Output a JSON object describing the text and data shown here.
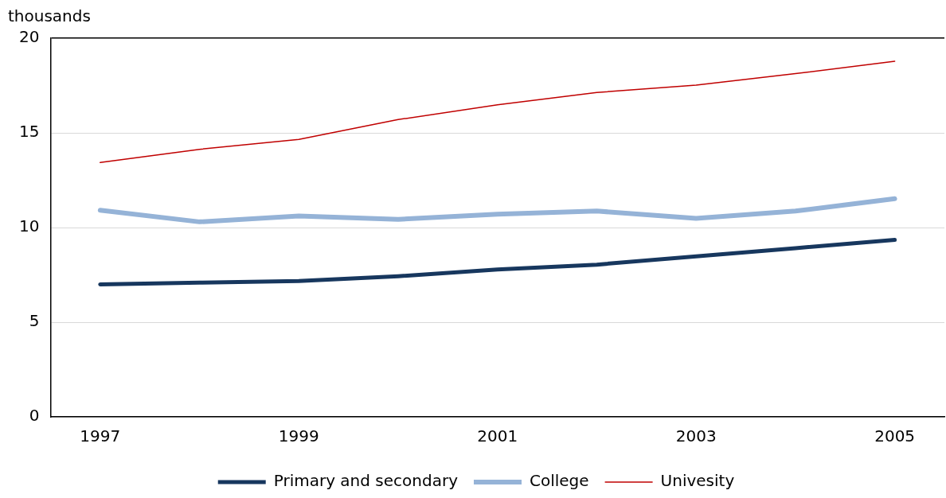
{
  "chart_data": {
    "type": "line",
    "ylabel": "thousands",
    "categories": [
      "1997",
      null,
      "1999",
      null,
      "2001",
      null,
      "2003",
      null,
      "2005"
    ],
    "ylim": [
      0,
      20
    ],
    "yticks": [
      0,
      5,
      10,
      15,
      20
    ],
    "grid": "y",
    "legend": "bottom",
    "marker": "none",
    "line_style": "solid",
    "series": [
      {
        "name": "Primary and secondary",
        "color": "#17375e",
        "values": [
          7.0,
          7.09,
          7.17,
          7.43,
          7.78,
          8.04,
          8.48,
          8.91,
          9.35
        ]
      },
      {
        "name": "College",
        "color": "#95b3d7",
        "values": [
          10.91,
          10.3,
          10.61,
          10.43,
          10.7,
          10.87,
          10.48,
          10.87,
          11.52
        ]
      },
      {
        "name": "Univesity",
        "color": "#c00000",
        "values": [
          13.43,
          14.13,
          14.65,
          15.7,
          16.48,
          17.13,
          17.52,
          18.13,
          18.78
        ]
      }
    ]
  }
}
